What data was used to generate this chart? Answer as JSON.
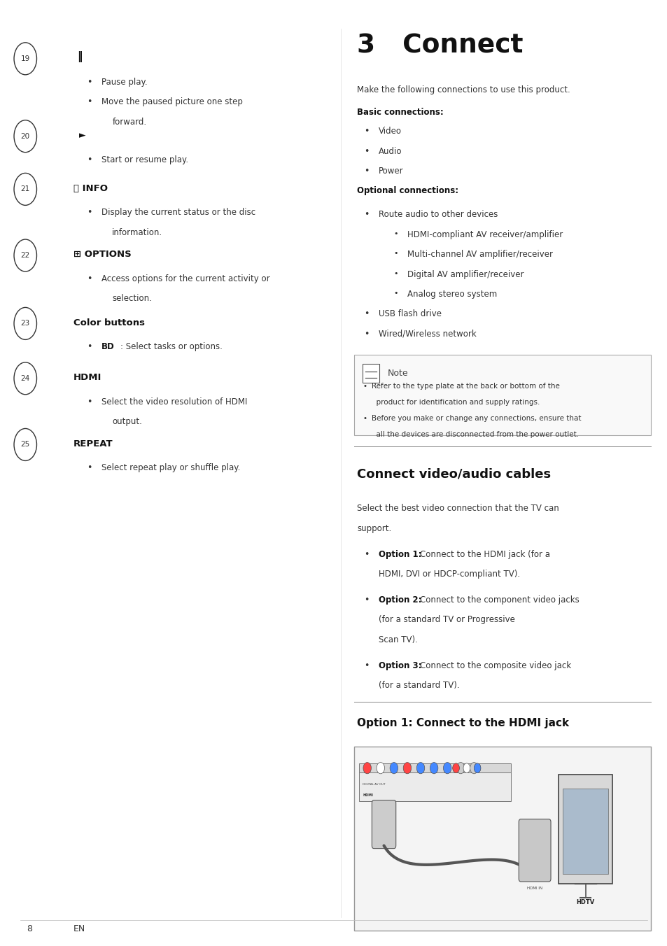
{
  "bg_color": "#ffffff",
  "text_color": "#333333",
  "bold_color": "#111111",
  "page_title": "3   Connect",
  "footer_num": "8",
  "footer_text": "EN"
}
